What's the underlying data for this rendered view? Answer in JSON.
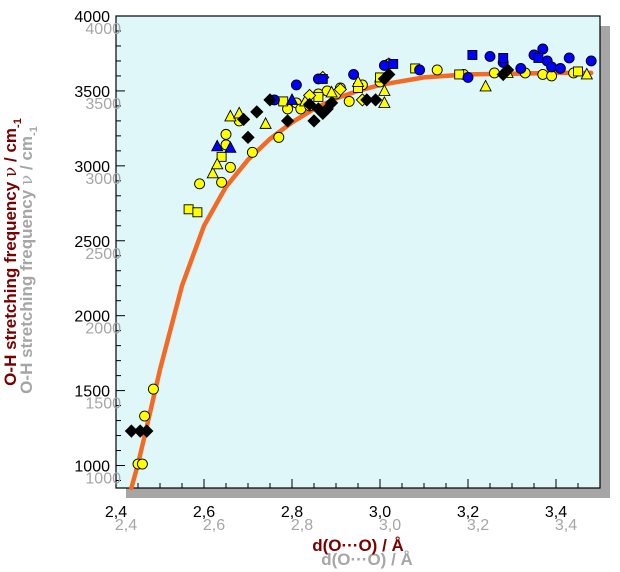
{
  "chart_data": {
    "type": "scatter",
    "xlabel": "d(O···O) / Å",
    "ylabel": "O-H stretching frequency ν / cm-1",
    "ylabel_main": "O-H stretching frequency ",
    "ylabel_greek": "ν",
    "ylabel_unit": " / cm",
    "ylabel_sup": "-1",
    "xlim": [
      2.4,
      3.5
    ],
    "ylim": [
      850,
      4000
    ],
    "x_ticks": [
      "2,4",
      "2,6",
      "2,8",
      "3,0",
      "3,2",
      "3,4"
    ],
    "y_ticks": [
      "1000",
      "1500",
      "2000",
      "2500",
      "3000",
      "3500",
      "4000"
    ],
    "grid": false,
    "background": "#dff7f9",
    "curve_color": "#f36a24",
    "title_color": "#7a0000",
    "shadow_color": "#a6a6a6",
    "fit_curve": {
      "name": "",
      "x": [
        2.435,
        2.45,
        2.47,
        2.5,
        2.55,
        2.6,
        2.65,
        2.7,
        2.75,
        2.8,
        2.85,
        2.9,
        2.95,
        3.0,
        3.1,
        3.2,
        3.3,
        3.4,
        3.48
      ],
      "y": [
        820,
        1010,
        1260,
        1640,
        2200,
        2600,
        2860,
        3040,
        3180,
        3290,
        3380,
        3450,
        3500,
        3540,
        3590,
        3610,
        3615,
        3620,
        3620
      ]
    },
    "series": [
      {
        "name": "",
        "marker": "circle",
        "color": "#ffff00",
        "points": [
          [
            2.45,
            1010
          ],
          [
            2.46,
            1010
          ],
          [
            2.465,
            1330
          ],
          [
            2.485,
            1510
          ],
          [
            2.59,
            2880
          ],
          [
            2.64,
            2890
          ],
          [
            2.65,
            3140
          ],
          [
            2.65,
            3210
          ],
          [
            2.66,
            2990
          ],
          [
            2.68,
            3300
          ],
          [
            2.71,
            3090
          ],
          [
            2.77,
            3190
          ],
          [
            2.79,
            3380
          ],
          [
            2.81,
            3420
          ],
          [
            2.82,
            3380
          ],
          [
            2.84,
            3400
          ],
          [
            2.86,
            3480
          ],
          [
            2.88,
            3500
          ],
          [
            2.9,
            3480
          ],
          [
            2.91,
            3520
          ],
          [
            2.93,
            3430
          ],
          [
            2.96,
            3540
          ],
          [
            3.0,
            3560
          ],
          [
            3.02,
            3680
          ],
          [
            3.13,
            3640
          ],
          [
            3.19,
            3610
          ],
          [
            3.26,
            3620
          ],
          [
            3.33,
            3620
          ],
          [
            3.37,
            3610
          ],
          [
            3.39,
            3600
          ],
          [
            3.44,
            3620
          ]
        ]
      },
      {
        "name": "",
        "marker": "square",
        "color": "#ffff00",
        "points": [
          [
            2.565,
            2710
          ],
          [
            2.585,
            2690
          ],
          [
            2.64,
            3060
          ],
          [
            2.78,
            3430
          ],
          [
            2.86,
            3460
          ],
          [
            2.95,
            3520
          ],
          [
            3.0,
            3590
          ],
          [
            3.08,
            3650
          ],
          [
            3.18,
            3610
          ],
          [
            3.45,
            3630
          ]
        ]
      },
      {
        "name": "",
        "marker": "triangle",
        "color": "#ffff00",
        "points": [
          [
            2.62,
            2950
          ],
          [
            2.63,
            3010
          ],
          [
            2.66,
            3330
          ],
          [
            2.68,
            3350
          ],
          [
            2.74,
            3280
          ],
          [
            2.83,
            3430
          ],
          [
            2.89,
            3490
          ],
          [
            2.95,
            3560
          ],
          [
            3.01,
            3420
          ],
          [
            3.01,
            3500
          ],
          [
            3.24,
            3530
          ],
          [
            3.29,
            3620
          ],
          [
            3.47,
            3610
          ]
        ]
      },
      {
        "name": "",
        "marker": "diamond",
        "color": "#ffff00",
        "points": [
          [
            2.84,
            3470
          ],
          [
            2.87,
            3590
          ],
          [
            2.91,
            3510
          ],
          [
            2.96,
            3440
          ],
          [
            3.02,
            3680
          ]
        ]
      },
      {
        "name": "",
        "marker": "circle",
        "color": "#0000ff",
        "points": [
          [
            2.76,
            3440
          ],
          [
            2.81,
            3540
          ],
          [
            2.86,
            3580
          ],
          [
            2.94,
            3610
          ],
          [
            3.01,
            3670
          ],
          [
            3.09,
            3640
          ],
          [
            3.2,
            3590
          ],
          [
            3.25,
            3730
          ],
          [
            3.28,
            3690
          ],
          [
            3.32,
            3650
          ],
          [
            3.35,
            3740
          ],
          [
            3.37,
            3780
          ],
          [
            3.38,
            3700
          ],
          [
            3.39,
            3660
          ],
          [
            3.41,
            3650
          ],
          [
            3.43,
            3720
          ],
          [
            3.48,
            3700
          ]
        ]
      },
      {
        "name": "",
        "marker": "square",
        "color": "#0000ff",
        "points": [
          [
            2.87,
            3580
          ],
          [
            3.03,
            3680
          ],
          [
            3.21,
            3740
          ],
          [
            3.28,
            3720
          ],
          [
            3.36,
            3720
          ]
        ]
      },
      {
        "name": "",
        "marker": "triangle",
        "color": "#0000ff",
        "points": [
          [
            2.63,
            3130
          ],
          [
            2.66,
            3120
          ],
          [
            2.8,
            3440
          ]
        ]
      },
      {
        "name": "",
        "marker": "diamond",
        "color": "#000000",
        "points": [
          [
            2.435,
            1230
          ],
          [
            2.455,
            1230
          ],
          [
            2.47,
            1230
          ],
          [
            2.69,
            3310
          ],
          [
            2.7,
            3190
          ],
          [
            2.72,
            3360
          ],
          [
            2.75,
            3440
          ],
          [
            2.79,
            3300
          ],
          [
            2.84,
            3410
          ],
          [
            2.85,
            3300
          ],
          [
            2.86,
            3380
          ],
          [
            2.87,
            3350
          ],
          [
            2.88,
            3380
          ],
          [
            2.89,
            3420
          ],
          [
            2.97,
            3440
          ],
          [
            2.99,
            3440
          ],
          [
            3.01,
            3580
          ],
          [
            3.02,
            3610
          ],
          [
            3.28,
            3610
          ],
          [
            3.29,
            3640
          ]
        ]
      }
    ]
  }
}
